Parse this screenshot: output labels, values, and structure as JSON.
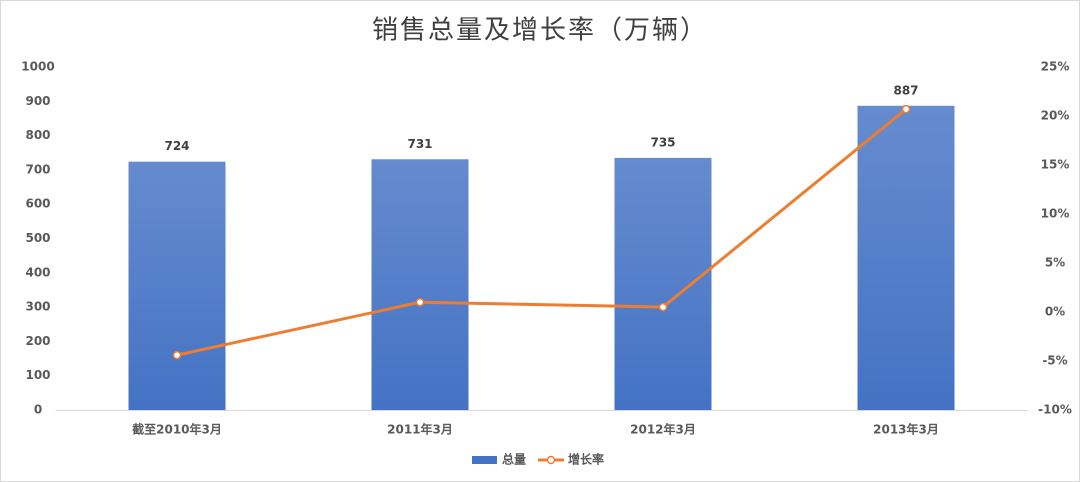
{
  "chart_data": {
    "type": "bar_line",
    "title": "销售总量及增长率（万辆）",
    "categories": [
      "截至2010年3月",
      "2011年3月",
      "2012年3月",
      "2013年3月"
    ],
    "series": [
      {
        "name": "总量",
        "type": "bar",
        "color": "#4472c4",
        "values": [
          724,
          731,
          735,
          887
        ],
        "data_labels": true
      },
      {
        "name": "增长率",
        "type": "line",
        "axis": "y2",
        "color": "#ed7d31",
        "values": [
          -4.4,
          1.0,
          0.5,
          20.7
        ]
      }
    ],
    "ylim": [
      0,
      1000
    ],
    "yticks": [
      0,
      100,
      200,
      300,
      400,
      500,
      600,
      700,
      800,
      900,
      1000
    ],
    "y2lim": [
      -10,
      25
    ],
    "y2ticks": [
      {
        "value": -10,
        "label": "-10%"
      },
      {
        "value": -5,
        "label": "-5%"
      },
      {
        "value": 0,
        "label": "0%"
      },
      {
        "value": 5,
        "label": "5%"
      },
      {
        "value": 10,
        "label": "10%"
      },
      {
        "value": 15,
        "label": "15%"
      },
      {
        "value": 20,
        "label": "20%"
      },
      {
        "value": 25,
        "label": "25%"
      }
    ],
    "grid": false,
    "legend": "bottom"
  }
}
